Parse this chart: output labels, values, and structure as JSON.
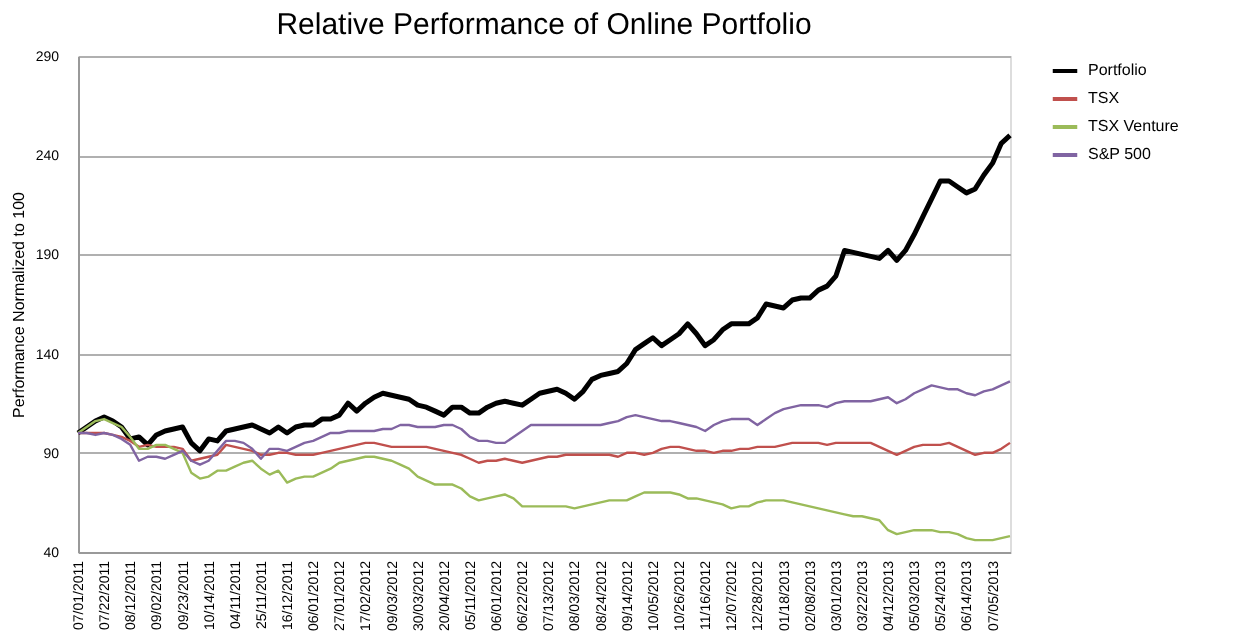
{
  "chart_data": {
    "type": "line",
    "title": "Relative Performance of Online Portfolio",
    "ylabel": "Performance Normalized to 100",
    "categories": [
      "07/01/2011",
      null,
      null,
      "07/22/2011",
      null,
      null,
      "08/12/2011",
      null,
      null,
      "09/02/2011",
      null,
      null,
      "09/23/2011",
      null,
      null,
      "10/14/2011",
      null,
      null,
      "04/11/2011",
      null,
      null,
      "25/11/2011",
      null,
      null,
      "16/12/2011",
      null,
      null,
      "06/01/2012",
      null,
      null,
      "27/01/2012",
      null,
      null,
      "17/02/2012",
      null,
      null,
      "09/03/2012",
      null,
      null,
      "30/03/2012",
      null,
      null,
      "20/04/2012",
      null,
      null,
      "05/11/2012",
      null,
      null,
      "06/01/2012",
      null,
      null,
      "06/22/2012",
      null,
      null,
      "07/13/2012",
      null,
      null,
      "08/03/2012",
      null,
      null,
      "08/24/2012",
      null,
      null,
      "09/14/2012",
      null,
      null,
      "10/05/2012",
      null,
      null,
      "10/26/2012",
      null,
      null,
      "11/16/2012",
      null,
      null,
      "12/07/2012",
      null,
      null,
      "12/28/2012",
      null,
      null,
      "01/18/2013",
      null,
      null,
      "02/08/2013",
      null,
      null,
      "03/01/2013",
      null,
      null,
      "03/22/2013",
      null,
      null,
      "04/12/2013",
      null,
      null,
      "05/03/2013",
      null,
      null,
      "05/24/2013",
      null,
      null,
      "06/14/2013",
      null,
      null,
      "07/05/2013",
      null,
      null
    ],
    "series": [
      {
        "name": "Portfolio",
        "color": "#000000",
        "values": [
          100,
          103,
          106,
          108,
          106,
          103,
          97,
          98,
          94,
          99,
          101,
          102,
          103,
          95,
          91,
          97,
          96,
          101,
          102,
          103,
          104,
          102,
          100,
          103,
          100,
          103,
          104,
          104,
          107,
          107,
          109,
          115,
          111,
          115,
          118,
          120,
          119,
          118,
          117,
          114,
          113,
          111,
          109,
          113,
          113,
          110,
          110,
          113,
          115,
          116,
          115,
          114,
          117,
          120,
          121,
          122,
          120,
          117,
          121,
          127,
          129,
          130,
          131,
          135,
          142,
          145,
          148,
          144,
          147,
          150,
          155,
          150,
          144,
          147,
          152,
          155,
          155,
          155,
          158,
          165,
          164,
          163,
          167,
          168,
          168,
          172,
          174,
          179,
          192,
          191,
          190,
          189,
          188,
          192,
          187,
          192,
          200,
          209,
          218,
          227,
          227,
          224,
          221,
          223,
          230,
          236,
          246,
          250
        ]
      },
      {
        "name": "TSX",
        "color": "#c0504d",
        "values": [
          100,
          100,
          100,
          100,
          99,
          98,
          96,
          93,
          94,
          93,
          93,
          93,
          92,
          86,
          87,
          88,
          89,
          94,
          93,
          92,
          91,
          89,
          89,
          90,
          90,
          89,
          89,
          89,
          90,
          91,
          92,
          93,
          94,
          95,
          95,
          94,
          93,
          93,
          93,
          93,
          93,
          92,
          91,
          90,
          89,
          87,
          85,
          86,
          86,
          87,
          86,
          85,
          86,
          87,
          88,
          88,
          89,
          89,
          89,
          89,
          89,
          89,
          88,
          90,
          90,
          89,
          90,
          92,
          93,
          93,
          92,
          91,
          91,
          90,
          91,
          91,
          92,
          92,
          93,
          93,
          93,
          94,
          95,
          95,
          95,
          95,
          94,
          95,
          95,
          95,
          95,
          95,
          93,
          91,
          89,
          91,
          93,
          94,
          94,
          94,
          95,
          93,
          91,
          89,
          90,
          90,
          92,
          95
        ]
      },
      {
        "name": "TSX Venture",
        "color": "#9bbb59",
        "values": [
          100,
          103,
          106,
          107,
          105,
          103,
          98,
          92,
          92,
          94,
          94,
          92,
          90,
          80,
          77,
          78,
          81,
          81,
          83,
          85,
          86,
          82,
          79,
          81,
          75,
          77,
          78,
          78,
          80,
          82,
          85,
          86,
          87,
          88,
          88,
          87,
          86,
          84,
          82,
          78,
          76,
          74,
          74,
          74,
          72,
          68,
          66,
          67,
          68,
          69,
          67,
          63,
          63,
          63,
          63,
          63,
          63,
          62,
          63,
          64,
          65,
          66,
          66,
          66,
          68,
          70,
          70,
          70,
          70,
          69,
          67,
          67,
          66,
          65,
          64,
          62,
          63,
          63,
          65,
          66,
          66,
          66,
          65,
          64,
          63,
          62,
          61,
          60,
          59,
          58,
          58,
          57,
          56,
          51,
          49,
          50,
          51,
          51,
          51,
          50,
          50,
          49,
          47,
          46,
          46,
          46,
          47,
          48
        ]
      },
      {
        "name": "S&P 500",
        "color": "#8064a2",
        "values": [
          100,
          100,
          99,
          100,
          99,
          97,
          94,
          86,
          88,
          88,
          87,
          89,
          91,
          86,
          84,
          86,
          91,
          96,
          96,
          95,
          92,
          87,
          92,
          92,
          91,
          93,
          95,
          96,
          98,
          100,
          100,
          101,
          101,
          101,
          101,
          102,
          102,
          104,
          104,
          103,
          103,
          103,
          104,
          104,
          102,
          98,
          96,
          96,
          95,
          95,
          98,
          101,
          104,
          104,
          104,
          104,
          104,
          104,
          104,
          104,
          104,
          105,
          106,
          108,
          109,
          108,
          107,
          106,
          106,
          105,
          104,
          103,
          101,
          104,
          106,
          107,
          107,
          107,
          104,
          107,
          110,
          112,
          113,
          114,
          114,
          114,
          113,
          115,
          116,
          116,
          116,
          116,
          117,
          118,
          115,
          117,
          120,
          122,
          124,
          123,
          122,
          122,
          120,
          119,
          121,
          122,
          124,
          126
        ]
      }
    ],
    "ylim": [
      40,
      290
    ],
    "yticks": [
      40,
      90,
      140,
      190,
      240,
      290
    ],
    "grid": "y",
    "legend": "right"
  }
}
